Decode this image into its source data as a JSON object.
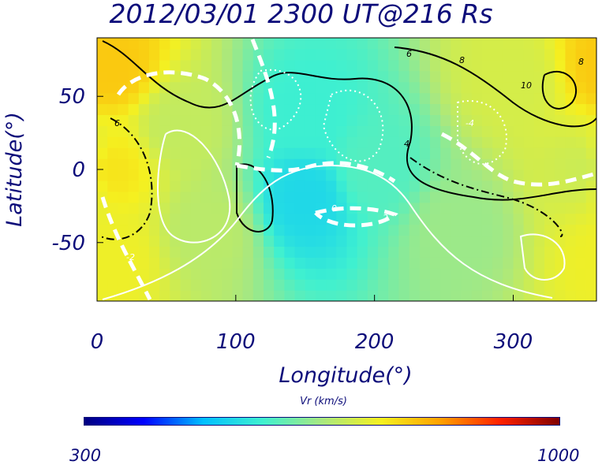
{
  "title": "2012/03/01 2300 UT@216 Rs",
  "chart_data": {
    "type": "heatmap",
    "title": "2012/03/01 2300 UT@216 Rs",
    "xlabel": "Longitude(°)",
    "ylabel": "Latitude(°)",
    "xlim": [
      0,
      360
    ],
    "ylim": [
      -90,
      90
    ],
    "xticks": [
      "0",
      "100",
      "200",
      "300"
    ],
    "yticks": [
      "50",
      "0",
      "-50"
    ],
    "colorbar": {
      "label": "Vr (km/s)",
      "min": 300,
      "max": 1000,
      "min_label": "300",
      "max_label": "1000",
      "colormap": [
        "#000080",
        "#0000ff",
        "#00bfff",
        "#3ff0d0",
        "#a8e880",
        "#f5f020",
        "#ffa000",
        "#ff2000",
        "#800000"
      ]
    },
    "vr_field_samples": [
      {
        "lon": 10,
        "lat": 70,
        "vr": 780
      },
      {
        "lon": 10,
        "lat": 0,
        "vr": 750
      },
      {
        "lon": 10,
        "lat": -60,
        "vr": 730
      },
      {
        "lon": 60,
        "lat": 30,
        "vr": 680
      },
      {
        "lon": 80,
        "lat": -40,
        "vr": 670
      },
      {
        "lon": 150,
        "lat": -20,
        "vr": 520
      },
      {
        "lon": 150,
        "lat": 40,
        "vr": 560
      },
      {
        "lon": 200,
        "lat": 0,
        "vr": 580
      },
      {
        "lon": 260,
        "lat": -40,
        "vr": 640
      },
      {
        "lon": 300,
        "lat": 60,
        "vr": 700
      },
      {
        "lon": 350,
        "lat": 0,
        "vr": 690
      }
    ],
    "contour_labels": [
      "6",
      "8",
      "10",
      "4",
      "2",
      "0",
      "-2",
      "-4",
      "6",
      "8"
    ]
  }
}
